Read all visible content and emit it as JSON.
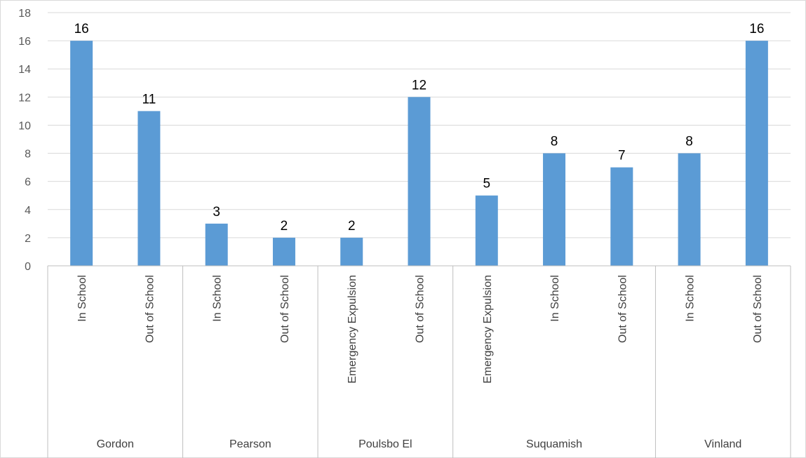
{
  "chart_data": {
    "type": "bar",
    "title": "",
    "xlabel": "",
    "ylabel": "",
    "ylim": [
      0,
      18
    ],
    "yticks": [
      0,
      2,
      4,
      6,
      8,
      10,
      12,
      14,
      16,
      18
    ],
    "grid": true,
    "legend": "none",
    "bar_color": "#5b9bd5",
    "groups": [
      "Gordon",
      "Pearson",
      "Poulsbo El",
      "Suquamish",
      "Vinland"
    ],
    "categories": [
      {
        "group": "Gordon",
        "label": "In School",
        "value": 16
      },
      {
        "group": "Gordon",
        "label": "Out of School",
        "value": 11
      },
      {
        "group": "Pearson",
        "label": "In School",
        "value": 3
      },
      {
        "group": "Pearson",
        "label": "Out of School",
        "value": 2
      },
      {
        "group": "Poulsbo El",
        "label": "Emergency Expulsion",
        "value": 2
      },
      {
        "group": "Poulsbo El",
        "label": "Out of School",
        "value": 12
      },
      {
        "group": "Suquamish",
        "label": "Emergency Expulsion",
        "value": 5
      },
      {
        "group": "Suquamish",
        "label": "In School",
        "value": 8
      },
      {
        "group": "Suquamish",
        "label": "Out of School",
        "value": 7
      },
      {
        "group": "Vinland",
        "label": "In School",
        "value": 8
      },
      {
        "group": "Vinland",
        "label": "Out of School",
        "value": 16
      }
    ]
  }
}
